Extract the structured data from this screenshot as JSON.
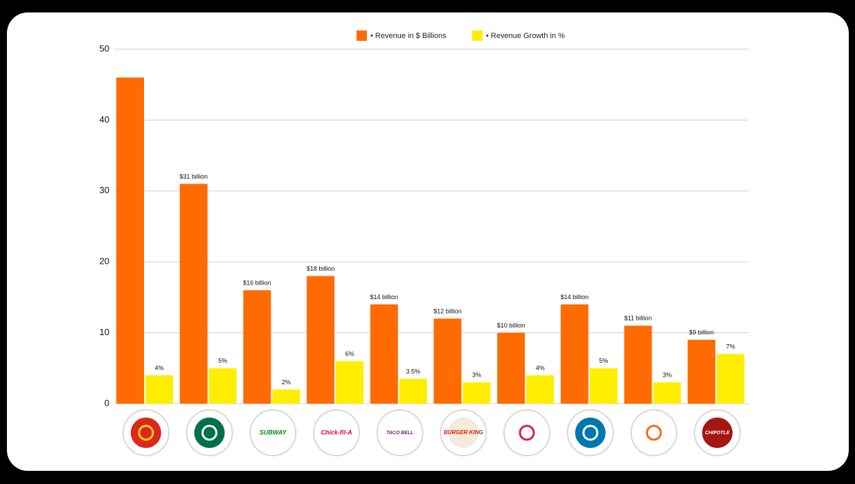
{
  "chart_data": {
    "type": "bar",
    "categories": [
      null,
      null,
      "SUBWAY",
      "Chick-fil-A",
      "TACO BELL",
      "BURGER KING",
      null,
      null,
      null,
      "CHIPOTLE"
    ],
    "series": [
      {
        "name": "• Revenue in $ Billions",
        "color": "#ff6b00",
        "values": [
          46,
          31,
          16,
          18,
          14,
          12,
          10,
          14,
          11,
          9
        ],
        "value_labels": [
          null,
          "$31 billion",
          "$16 billion",
          "$18 billion",
          "$14 billion",
          "$12 billion",
          "$10 billion",
          "$14 billion",
          "$11 billion",
          "$9 billion"
        ]
      },
      {
        "name": "• Revenue Growth in %",
        "color": "#ffee00",
        "values": [
          4,
          5,
          2,
          6,
          3.5,
          3,
          4,
          5,
          3,
          7
        ],
        "value_labels": [
          "4%",
          "5%",
          "2%",
          "6%",
          "3.5%",
          "3%",
          "4%",
          "5%",
          "3%",
          "7%"
        ]
      }
    ],
    "ylim": [
      0,
      50
    ],
    "yticks": [
      0,
      10,
      20,
      30,
      40,
      50
    ],
    "grid": true,
    "legend": "top"
  }
}
